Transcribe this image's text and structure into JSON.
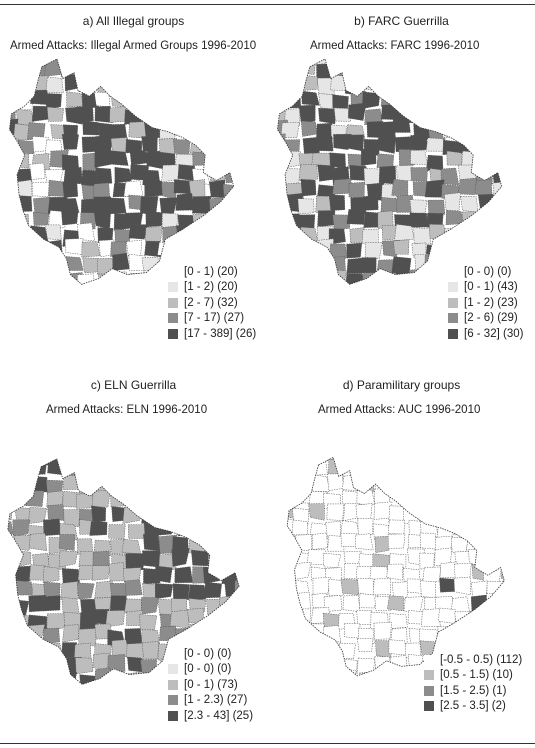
{
  "panels": [
    {
      "title": "a) All Illegal groups",
      "subtitle": "Armed Attacks: Illegal Armed Groups 1996-2010",
      "legend": [
        {
          "label": "[0 - 1) (20)",
          "color": "#ffffff"
        },
        {
          "label": "[1 - 2) (20)",
          "color": "#e6e6e6"
        },
        {
          "label": "[2 - 7) (32)",
          "color": "#bdbdbd"
        },
        {
          "label": "[7 - 17) (27)",
          "color": "#8c8c8c"
        },
        {
          "label": "[17 - 389] (26)",
          "color": "#505050"
        }
      ]
    },
    {
      "title": "b) FARC Guerrilla",
      "subtitle": "Armed Attacks: FARC 1996-2010",
      "legend": [
        {
          "label": "[0 - 0) (0)",
          "color": "#ffffff"
        },
        {
          "label": "[0 - 1) (43)",
          "color": "#e6e6e6"
        },
        {
          "label": "[1 - 2) (23)",
          "color": "#bdbdbd"
        },
        {
          "label": "[2 - 6) (29)",
          "color": "#8c8c8c"
        },
        {
          "label": "[6 - 32] (30)",
          "color": "#505050"
        }
      ]
    },
    {
      "title": "c) ELN Guerrilla",
      "subtitle": "Armed Attacks: ELN 1996-2010",
      "legend": [
        {
          "label": "[0 - 0) (0)",
          "color": "#ffffff"
        },
        {
          "label": "[0 - 0) (0)",
          "color": "#e6e6e6"
        },
        {
          "label": "[0 - 1) (73)",
          "color": "#bdbdbd"
        },
        {
          "label": "[1 - 2.3) (27)",
          "color": "#8c8c8c"
        },
        {
          "label": "[2.3 - 43] (25)",
          "color": "#505050"
        }
      ]
    },
    {
      "title": "d) Paramilitary groups",
      "subtitle": "Armed Attacks: AUC 1996-2010",
      "legend": [
        {
          "label": "[-0.5 - 0.5) (112)",
          "color": "#ffffff"
        },
        {
          "label": "[0.5 - 1.5) (10)",
          "color": "#bdbdbd"
        },
        {
          "label": "[1.5 - 2.5) (1)",
          "color": "#8c8c8c"
        },
        {
          "label": "[2.5 - 3.5] (2)",
          "color": "#505050"
        }
      ]
    }
  ]
}
